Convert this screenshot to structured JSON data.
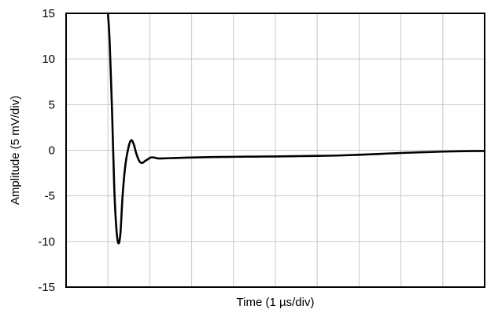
{
  "chart_data": {
    "type": "line",
    "title": "",
    "xlabel": "Time (1 µs/div)",
    "ylabel": "Amplitude (5 mV/div)",
    "xlim": [
      0,
      10
    ],
    "ylim": [
      -15,
      15
    ],
    "y_ticks": [
      -15,
      -10,
      -5,
      0,
      5,
      10,
      15
    ],
    "y_tick_labels": [
      "-15",
      "-10",
      "-5",
      "0",
      "5",
      "10",
      "15"
    ],
    "x_tick_labels_shown": false,
    "grid": true,
    "legend": "none",
    "colors": {
      "line": "#000000",
      "grid": "#c8c8c8",
      "frame": "#000000"
    },
    "series": [
      {
        "x": [
          1.0,
          1.04,
          1.1,
          1.15,
          1.2,
          1.25,
          1.3,
          1.35,
          1.42,
          1.5,
          1.56,
          1.62,
          1.68,
          1.75,
          1.82,
          1.88,
          1.95,
          2.02,
          2.1,
          2.15,
          2.2,
          2.3,
          2.4,
          2.6,
          2.8,
          3.0,
          3.5,
          4.0,
          4.5,
          5.0,
          5.5,
          6.0,
          6.5,
          7.0,
          7.5,
          8.0,
          8.5,
          9.0,
          9.5,
          10.0
        ],
        "y": [
          15.0,
          12.0,
          4.0,
          -4.0,
          -8.5,
          -10.2,
          -9.0,
          -5.0,
          -1.5,
          0.5,
          1.1,
          0.6,
          -0.4,
          -1.2,
          -1.4,
          -1.2,
          -1.0,
          -0.8,
          -0.8,
          -0.85,
          -0.9,
          -0.9,
          -0.88,
          -0.85,
          -0.82,
          -0.8,
          -0.75,
          -0.72,
          -0.7,
          -0.68,
          -0.65,
          -0.62,
          -0.58,
          -0.5,
          -0.4,
          -0.3,
          -0.22,
          -0.15,
          -0.1,
          -0.08
        ]
      }
    ]
  }
}
